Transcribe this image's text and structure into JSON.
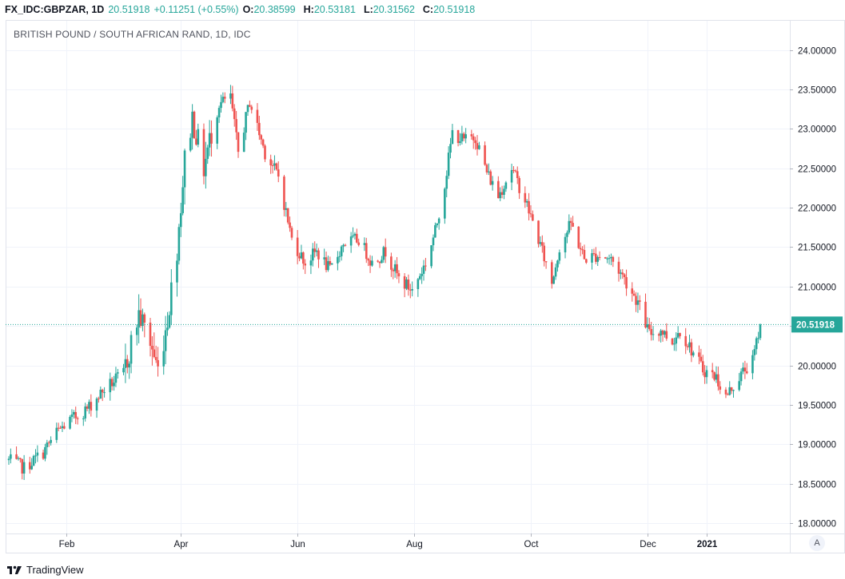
{
  "header": {
    "symbol": "FX_IDC:GBPZAR, 1D",
    "last": "20.51918",
    "change": "+0.11251 (+0.55%)",
    "o_label": "O:",
    "o_value": "20.38599",
    "h_label": "H:",
    "h_value": "20.53181",
    "l_label": "L:",
    "l_value": "20.31562",
    "c_label": "C:",
    "c_value": "20.51918"
  },
  "footer": {
    "brand": "TradingView",
    "auto_label": "A"
  },
  "colors": {
    "up": "#26a69a",
    "down": "#ef5350",
    "grid": "#f0f3fa",
    "border": "#e0e3eb",
    "axis_text": "#131722"
  },
  "chart_data": {
    "type": "candlestick",
    "title": "BRITISH POUND / SOUTH AFRICAN RAND, 1D, IDC",
    "ylim": [
      17.87,
      24.38
    ],
    "y_ticks": [
      "18.00000",
      "18.50000",
      "19.00000",
      "19.50000",
      "20.00000",
      "20.50000",
      "21.00000",
      "21.50000",
      "22.00000",
      "22.50000",
      "23.00000",
      "23.50000",
      "24.00000"
    ],
    "x_ticks": [
      "Feb",
      "Apr",
      "Jun",
      "Aug",
      "Oct",
      "Dec",
      "2021"
    ],
    "last_price_label": "20.51918",
    "grid": true,
    "anchors": [
      {
        "date": "2020-01-02",
        "price": 18.8
      },
      {
        "date": "2020-01-10",
        "price": 18.7
      },
      {
        "date": "2020-01-20",
        "price": 18.9
      },
      {
        "date": "2020-01-27",
        "price": 19.15
      },
      {
        "date": "2020-02-03",
        "price": 19.3
      },
      {
        "date": "2020-02-12",
        "price": 19.45
      },
      {
        "date": "2020-02-21",
        "price": 19.7
      },
      {
        "date": "2020-03-02",
        "price": 19.9
      },
      {
        "date": "2020-03-10",
        "price": 20.65
      },
      {
        "date": "2020-03-16",
        "price": 20.3
      },
      {
        "date": "2020-03-20",
        "price": 19.95
      },
      {
        "date": "2020-03-25",
        "price": 20.6
      },
      {
        "date": "2020-03-30",
        "price": 21.5
      },
      {
        "date": "2020-04-03",
        "price": 22.6
      },
      {
        "date": "2020-04-07",
        "price": 23.15
      },
      {
        "date": "2020-04-13",
        "price": 22.5
      },
      {
        "date": "2020-04-20",
        "price": 23.3
      },
      {
        "date": "2020-04-27",
        "price": 23.4
      },
      {
        "date": "2020-05-01",
        "price": 22.7
      },
      {
        "date": "2020-05-07",
        "price": 23.35
      },
      {
        "date": "2020-05-15",
        "price": 22.7
      },
      {
        "date": "2020-05-22",
        "price": 22.4
      },
      {
        "date": "2020-05-29",
        "price": 21.6
      },
      {
        "date": "2020-06-05",
        "price": 21.3
      },
      {
        "date": "2020-06-11",
        "price": 21.45
      },
      {
        "date": "2020-06-18",
        "price": 21.2
      },
      {
        "date": "2020-06-25",
        "price": 21.55
      },
      {
        "date": "2020-07-03",
        "price": 21.6
      },
      {
        "date": "2020-07-10",
        "price": 21.3
      },
      {
        "date": "2020-07-17",
        "price": 21.45
      },
      {
        "date": "2020-07-24",
        "price": 21.1
      },
      {
        "date": "2020-07-31",
        "price": 20.95
      },
      {
        "date": "2020-08-07",
        "price": 21.3
      },
      {
        "date": "2020-08-12",
        "price": 21.7
      },
      {
        "date": "2020-08-17",
        "price": 22.3
      },
      {
        "date": "2020-08-21",
        "price": 22.95
      },
      {
        "date": "2020-08-27",
        "price": 22.85
      },
      {
        "date": "2020-09-02",
        "price": 22.9
      },
      {
        "date": "2020-09-08",
        "price": 22.45
      },
      {
        "date": "2020-09-14",
        "price": 22.15
      },
      {
        "date": "2020-09-21",
        "price": 22.5
      },
      {
        "date": "2020-09-28",
        "price": 22.1
      },
      {
        "date": "2020-10-05",
        "price": 21.6
      },
      {
        "date": "2020-10-12",
        "price": 21.05
      },
      {
        "date": "2020-10-16",
        "price": 21.5
      },
      {
        "date": "2020-10-22",
        "price": 21.8
      },
      {
        "date": "2020-10-29",
        "price": 21.35
      },
      {
        "date": "2020-11-05",
        "price": 21.4
      },
      {
        "date": "2020-11-12",
        "price": 21.35
      },
      {
        "date": "2020-11-19",
        "price": 21.1
      },
      {
        "date": "2020-11-26",
        "price": 20.8
      },
      {
        "date": "2020-12-02",
        "price": 20.4
      },
      {
        "date": "2020-12-08",
        "price": 20.45
      },
      {
        "date": "2020-12-14",
        "price": 20.3
      },
      {
        "date": "2020-12-18",
        "price": 20.45
      },
      {
        "date": "2020-12-24",
        "price": 20.2
      },
      {
        "date": "2020-12-30",
        "price": 19.95
      },
      {
        "date": "2021-01-06",
        "price": 19.85
      },
      {
        "date": "2021-01-11",
        "price": 19.6
      },
      {
        "date": "2021-01-15",
        "price": 19.75
      },
      {
        "date": "2021-01-21",
        "price": 19.95
      },
      {
        "date": "2021-01-25",
        "price": 20.05
      },
      {
        "date": "2021-01-29",
        "price": 20.52
      }
    ]
  }
}
